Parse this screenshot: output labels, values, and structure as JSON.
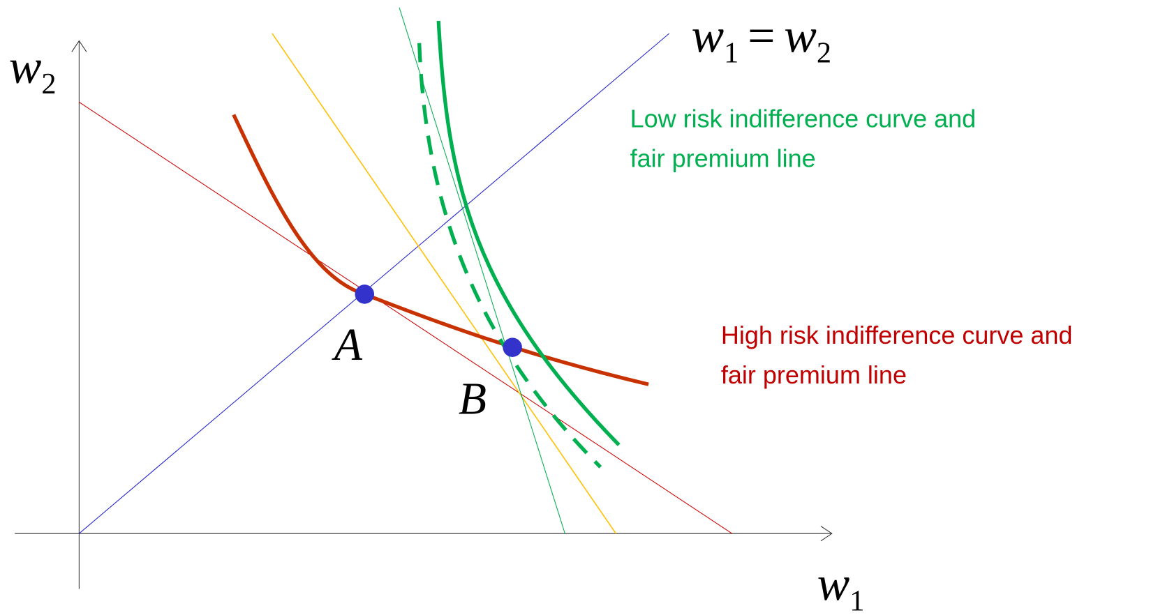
{
  "axes": {
    "y_label": {
      "base": "w",
      "sub": "2"
    },
    "x_label": {
      "base": "w",
      "sub": "1"
    }
  },
  "diagonal_label": {
    "left": {
      "base": "w",
      "sub": "1"
    },
    "operator": "=",
    "right": {
      "base": "w",
      "sub": "2"
    }
  },
  "points": [
    {
      "label": "A"
    },
    {
      "label": "B"
    }
  ],
  "annotations": [
    {
      "lines": [
        "Low risk indifference curve and",
        "fair premium line"
      ]
    },
    {
      "lines": [
        "High risk indifference curve and",
        "fair premium line"
      ]
    }
  ]
}
